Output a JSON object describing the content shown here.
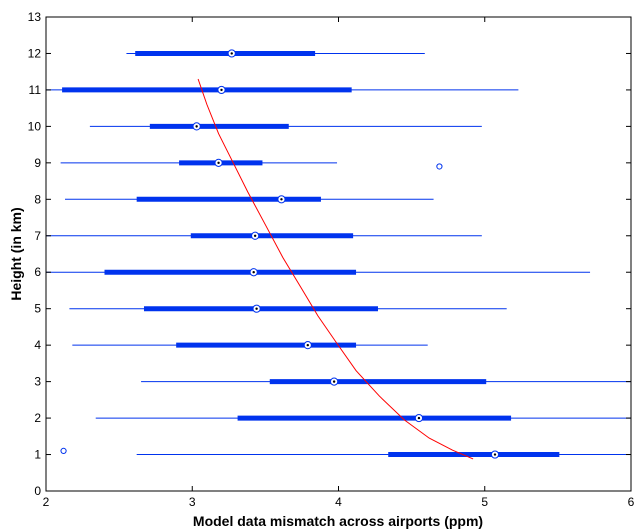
{
  "chart_data": {
    "type": "box",
    "orientation": "horizontal",
    "title": "",
    "xlabel": "Model data mismatch across airports (ppm)",
    "ylabel": "Height (in km)",
    "xlim": [
      2,
      6
    ],
    "ylim": [
      0,
      13
    ],
    "xticks": [
      2,
      3,
      4,
      5,
      6
    ],
    "yticks": [
      0,
      1,
      2,
      3,
      4,
      5,
      6,
      7,
      8,
      9,
      10,
      11,
      12,
      13
    ],
    "grid": false,
    "box_color": "#0033ee",
    "fit_color": "#ff0000",
    "boxes": [
      {
        "height": 1,
        "whisker_low": 2.62,
        "q1": 4.34,
        "median": 5.07,
        "q3": 5.51,
        "whisker_high": 6.0
      },
      {
        "height": 2,
        "whisker_low": 2.34,
        "q1": 3.31,
        "median": 4.55,
        "q3": 5.18,
        "whisker_high": 6.0
      },
      {
        "height": 3,
        "whisker_low": 2.65,
        "q1": 3.53,
        "median": 3.97,
        "q3": 5.01,
        "whisker_high": 6.0
      },
      {
        "height": 4,
        "whisker_low": 2.18,
        "q1": 2.89,
        "median": 3.79,
        "q3": 4.12,
        "whisker_high": 4.61
      },
      {
        "height": 5,
        "whisker_low": 2.16,
        "q1": 2.67,
        "median": 3.44,
        "q3": 4.27,
        "whisker_high": 5.15
      },
      {
        "height": 6,
        "whisker_low": 2.0,
        "q1": 2.4,
        "median": 3.42,
        "q3": 4.12,
        "whisker_high": 5.72
      },
      {
        "height": 7,
        "whisker_low": 2.0,
        "q1": 2.99,
        "median": 3.43,
        "q3": 4.1,
        "whisker_high": 4.98
      },
      {
        "height": 8,
        "whisker_low": 2.13,
        "q1": 2.62,
        "median": 3.61,
        "q3": 3.88,
        "whisker_high": 4.65
      },
      {
        "height": 9,
        "whisker_low": 2.1,
        "q1": 2.91,
        "median": 3.18,
        "q3": 3.48,
        "whisker_high": 3.99
      },
      {
        "height": 10,
        "whisker_low": 2.3,
        "q1": 2.71,
        "median": 3.03,
        "q3": 3.66,
        "whisker_high": 4.98
      },
      {
        "height": 11,
        "whisker_low": 2.0,
        "q1": 2.11,
        "median": 3.2,
        "q3": 4.09,
        "whisker_high": 5.23
      },
      {
        "height": 12,
        "whisker_low": 2.55,
        "q1": 2.61,
        "median": 3.27,
        "q3": 3.84,
        "whisker_high": 4.59
      }
    ],
    "outliers": [
      {
        "x": 4.69,
        "y": 8.9
      },
      {
        "x": 2.12,
        "y": 1.1
      }
    ],
    "fit_curve": [
      {
        "x": 3.04,
        "y": 11.3
      },
      {
        "x": 3.1,
        "y": 10.6
      },
      {
        "x": 3.18,
        "y": 9.8
      },
      {
        "x": 3.28,
        "y": 9.0
      },
      {
        "x": 3.38,
        "y": 8.2
      },
      {
        "x": 3.5,
        "y": 7.3
      },
      {
        "x": 3.62,
        "y": 6.4
      },
      {
        "x": 3.74,
        "y": 5.6
      },
      {
        "x": 3.86,
        "y": 4.8
      },
      {
        "x": 3.98,
        "y": 4.1
      },
      {
        "x": 4.12,
        "y": 3.3
      },
      {
        "x": 4.28,
        "y": 2.6
      },
      {
        "x": 4.45,
        "y": 1.95
      },
      {
        "x": 4.62,
        "y": 1.45
      },
      {
        "x": 4.78,
        "y": 1.12
      },
      {
        "x": 4.92,
        "y": 0.88
      }
    ]
  }
}
